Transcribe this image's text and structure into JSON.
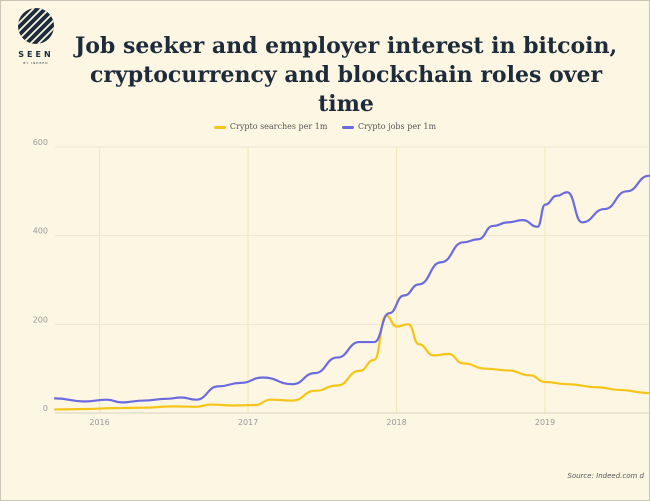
{
  "brand": {
    "name": "SEEN",
    "sub": "BY INDEED",
    "color": "#1d2b3a"
  },
  "title_line1": "Job seeker and employer interest in bitcoin,",
  "title_line2": "cryptocurrency and blockchain roles over time",
  "source": "Source: Indeed.com d",
  "chart_data": {
    "type": "line",
    "title": "Job seeker and employer interest in bitcoin, cryptocurrency and blockchain roles over time",
    "xlabel": "",
    "ylabel": "",
    "ylim": [
      0,
      600
    ],
    "yticks": [
      "0",
      "200",
      "400",
      "600"
    ],
    "xlim": [
      2015.7,
      2019.7
    ],
    "xticks": [
      {
        "label": "2016",
        "x": 2016.0
      },
      {
        "label": "2017",
        "x": 2017.0
      },
      {
        "label": "2018",
        "x": 2018.0
      },
      {
        "label": "2019",
        "x": 2019.0
      }
    ],
    "grid": true,
    "legend": "top-center",
    "series": [
      {
        "name": "Crypto searches per 1m",
        "color": "#f5c518",
        "x": [
          2015.7,
          2015.9,
          2016.1,
          2016.3,
          2016.5,
          2016.65,
          2016.75,
          2016.9,
          2017.05,
          2017.15,
          2017.3,
          2017.45,
          2017.6,
          2017.75,
          2017.85,
          2017.93,
          2018.0,
          2018.08,
          2018.15,
          2018.25,
          2018.35,
          2018.45,
          2018.6,
          2018.75,
          2018.9,
          2019.0,
          2019.15,
          2019.35,
          2019.5,
          2019.7
        ],
        "values": [
          8,
          9,
          11,
          12,
          15,
          14,
          19,
          17,
          18,
          30,
          28,
          50,
          62,
          95,
          120,
          220,
          195,
          200,
          155,
          130,
          133,
          112,
          100,
          96,
          85,
          70,
          65,
          58,
          52,
          45
        ]
      },
      {
        "name": "Crypto jobs per 1m",
        "color": "#6b6be0",
        "x": [
          2015.7,
          2015.9,
          2016.05,
          2016.15,
          2016.3,
          2016.45,
          2016.55,
          2016.65,
          2016.8,
          2016.95,
          2017.1,
          2017.3,
          2017.45,
          2017.6,
          2017.75,
          2017.85,
          2017.95,
          2018.05,
          2018.15,
          2018.3,
          2018.45,
          2018.55,
          2018.65,
          2018.75,
          2018.85,
          2018.95,
          2019.0,
          2019.08,
          2019.15,
          2019.25,
          2019.4,
          2019.55,
          2019.7
        ],
        "values": [
          33,
          26,
          30,
          24,
          28,
          32,
          35,
          30,
          60,
          68,
          80,
          65,
          90,
          125,
          160,
          160,
          225,
          265,
          290,
          340,
          385,
          392,
          422,
          430,
          435,
          420,
          470,
          490,
          498,
          430,
          460,
          500,
          535
        ]
      }
    ]
  }
}
